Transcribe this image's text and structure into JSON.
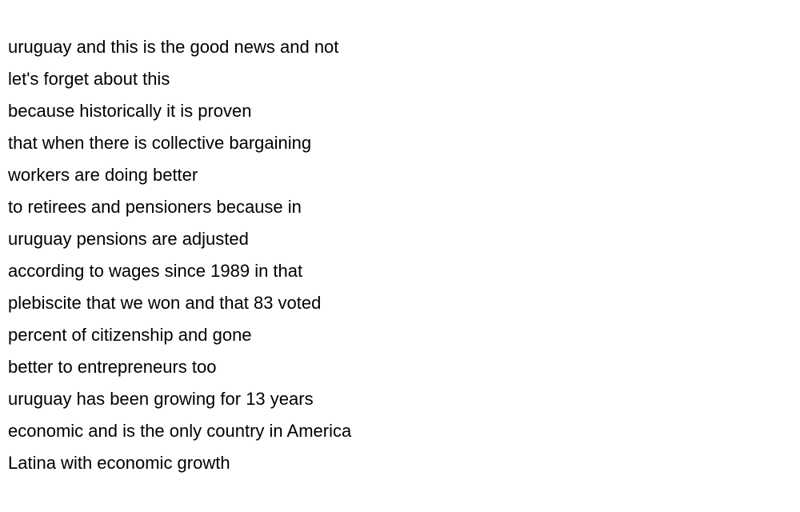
{
  "transcript": {
    "lines": [
      "uruguay and this is the good news and not",
      "let's forget about this",
      "because historically it is proven",
      "that when there is collective bargaining",
      "workers are doing better",
      "to retirees and pensioners because in",
      "uruguay pensions are adjusted",
      "according to wages since 1989 in that",
      "plebiscite that we won and that 83 voted",
      "percent of citizenship and gone",
      "better to entrepreneurs too",
      "uruguay has been growing for 13 years",
      "economic and is the only country in America",
      "Latina with economic growth"
    ]
  }
}
